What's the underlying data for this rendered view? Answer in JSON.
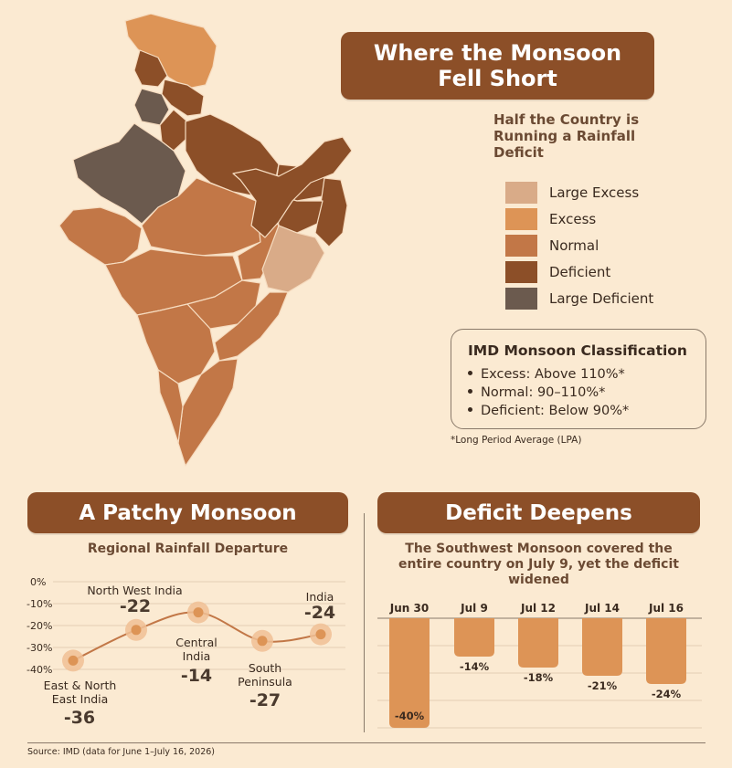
{
  "header": {
    "title_line1": "Where the Monsoon",
    "title_line2": "Fell Short",
    "subtitle_line1": "Half the Country is",
    "subtitle_line2": "Running a Rainfall",
    "subtitle_line3": "Deficit"
  },
  "legend": {
    "items": [
      {
        "label": "Large Excess",
        "color": "#d9ab88"
      },
      {
        "label": "Excess",
        "color": "#dd9456"
      },
      {
        "label": "Normal",
        "color": "#c27747"
      },
      {
        "label": "Deficient",
        "color": "#8c4f28"
      },
      {
        "label": "Large Deficient",
        "color": "#6b5a4e"
      }
    ]
  },
  "classification": {
    "title": "IMD Monsoon Classification",
    "items": [
      "Excess: Above 110%*",
      "Normal: 90–110%*",
      "Deficient: Below 90%*"
    ],
    "footnote": "*Long Period Average (LPA)"
  },
  "patchy": {
    "title": "A Patchy Monsoon",
    "subtitle": "Regional Rainfall Departure"
  },
  "deficit": {
    "title": "Deficit Deepens",
    "subtitle_line1": "The Southwest Monsoon covered the",
    "subtitle_line2": "entire country on July 9, yet the deficit",
    "subtitle_line3": "widened"
  },
  "source": "Source: IMD (data for June 1–July 16, 2026)",
  "colors": {
    "banner": "#8c4f28",
    "background": "#fbead2",
    "bar": "#dd9456",
    "line": "#c27747",
    "marker_halo": "#f0bf95"
  },
  "chart_data": [
    {
      "type": "line",
      "title": "A Patchy Monsoon",
      "subtitle": "Regional Rainfall Departure",
      "y_ticks": [
        "0%",
        "-10%",
        "-20%",
        "-30%",
        "-40%"
      ],
      "ylim": [
        -40,
        0
      ],
      "grid": true,
      "points": [
        {
          "name_line1": "East & North",
          "name_line2": "East India",
          "value": -36,
          "value_label": "-36"
        },
        {
          "name_line1": "North West India",
          "name_line2": "",
          "value": -22,
          "value_label": "-22"
        },
        {
          "name_line1": "Central",
          "name_line2": "India",
          "value": -14,
          "value_label": "-14"
        },
        {
          "name_line1": "South",
          "name_line2": "Peninsula",
          "value": -27,
          "value_label": "-27"
        },
        {
          "name_line1": "India",
          "name_line2": "",
          "value": -24,
          "value_label": "-24"
        }
      ]
    },
    {
      "type": "bar",
      "title": "Deficit Deepens",
      "categories": [
        "Jun 30",
        "Jul 9",
        "Jul 12",
        "Jul 14",
        "Jul 16"
      ],
      "values": [
        -40,
        -14,
        -18,
        -21,
        -24
      ],
      "value_labels": [
        "-40%",
        "-14%",
        "-18%",
        "-21%",
        "-24%"
      ],
      "ylim": [
        -40,
        0
      ],
      "grid": true
    }
  ]
}
